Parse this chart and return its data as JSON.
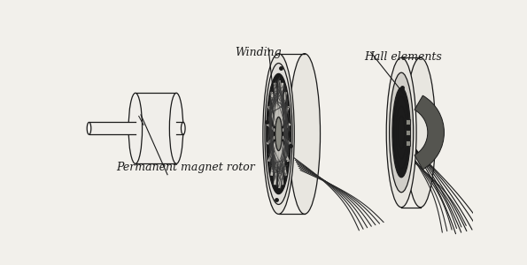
{
  "bg_color": "#f2f0eb",
  "line_color": "#1a1a1a",
  "fill_light": "#f0eeea",
  "fill_mid": "#d8d6d0",
  "fill_dark": "#222222",
  "labels": {
    "permanent_magnet_rotor": "Permanent magnet rotor",
    "winding": "Winding",
    "hall_elements": "Hall elements"
  },
  "figsize": [
    5.95,
    3.0
  ],
  "dpi": 100
}
